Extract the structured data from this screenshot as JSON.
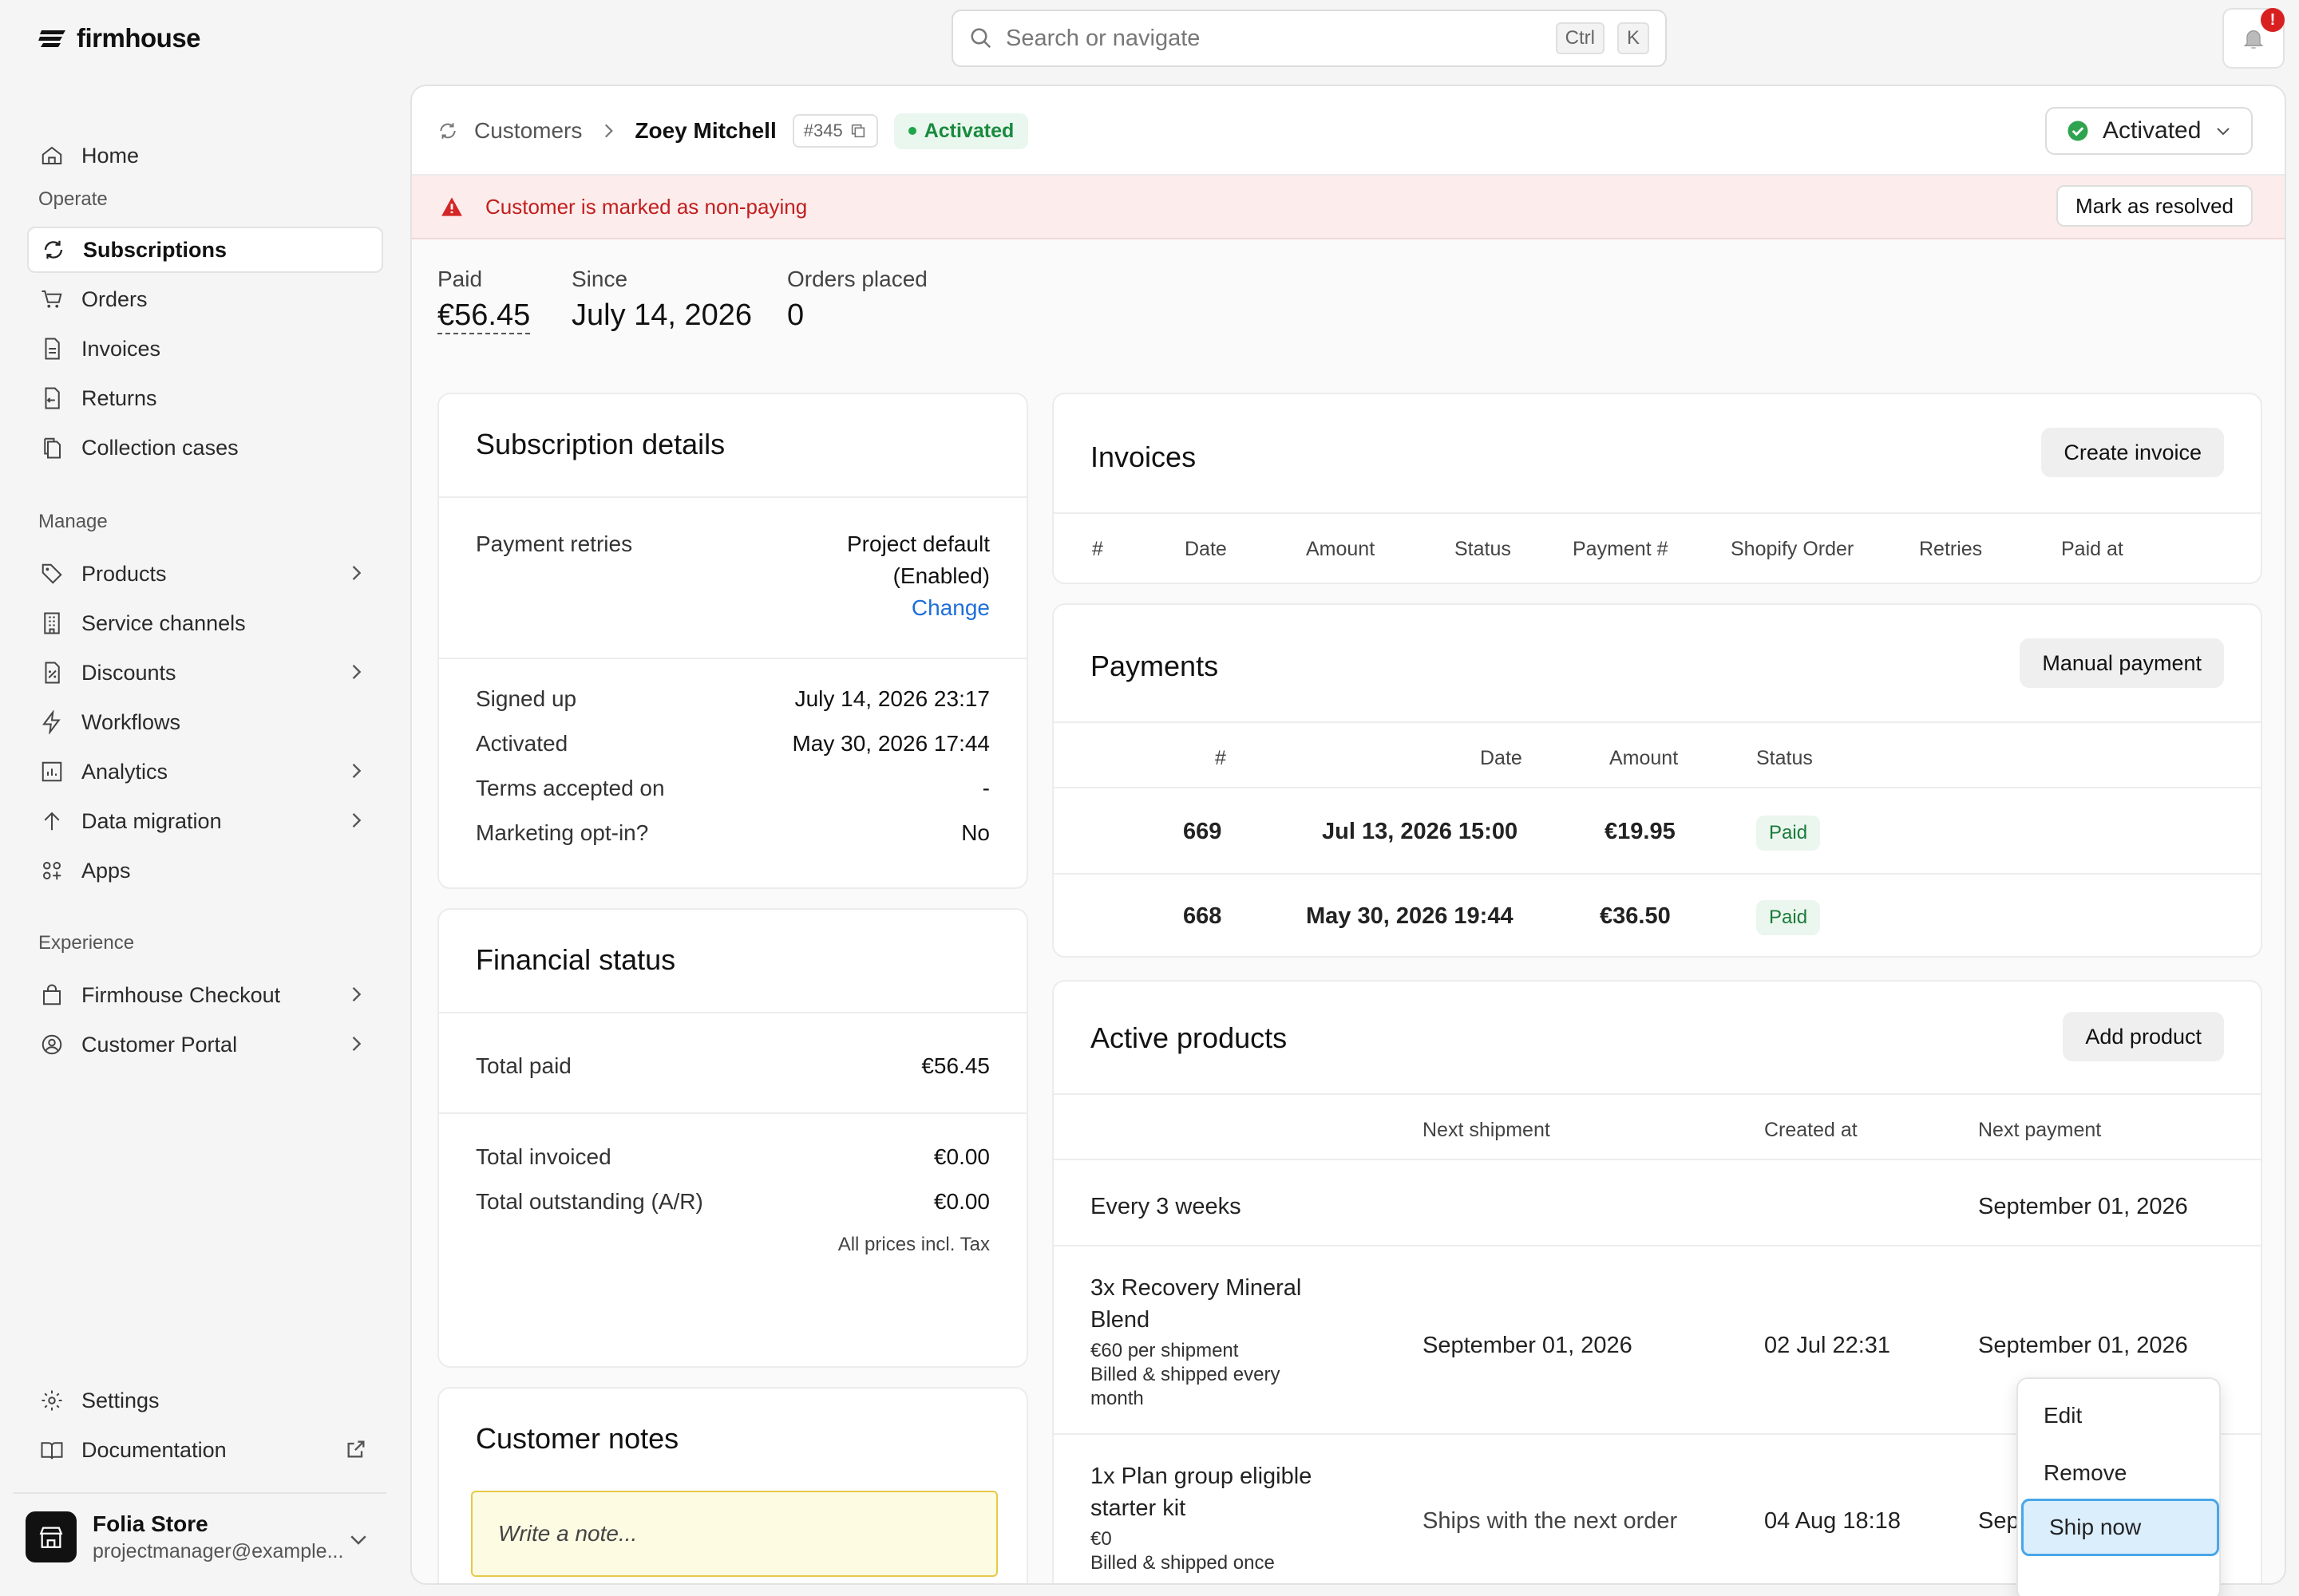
{
  "brand": {
    "name": "firmhouse"
  },
  "search": {
    "placeholder": "Search or navigate",
    "kbd1": "Ctrl",
    "kbd2": "K"
  },
  "notifications": {
    "badge": "!"
  },
  "sidebar": {
    "home": "Home",
    "sections": {
      "operate": "Operate",
      "manage": "Manage",
      "experience": "Experience"
    },
    "operate": [
      "Subscriptions",
      "Orders",
      "Invoices",
      "Returns",
      "Collection cases"
    ],
    "manage": [
      "Products",
      "Service channels",
      "Discounts",
      "Workflows",
      "Analytics",
      "Data migration",
      "Apps"
    ],
    "experience": [
      "Firmhouse Checkout",
      "Customer Portal"
    ],
    "footer": [
      "Settings",
      "Documentation"
    ],
    "store": {
      "name": "Folia Store",
      "email": "projectmanager@example..."
    }
  },
  "header": {
    "breadcrumb_root": "Customers",
    "customer_name": "Zoey Mitchell",
    "customer_id": "#345",
    "status_pill": "Activated",
    "status_select": "Activated"
  },
  "alert": {
    "message": "Customer is marked as non-paying",
    "action": "Mark as resolved"
  },
  "stats": [
    {
      "label": "Paid",
      "value": "€56.45"
    },
    {
      "label": "Since",
      "value": "July 14, 2026"
    },
    {
      "label": "Orders placed",
      "value": "0"
    }
  ],
  "subscription_details": {
    "title": "Subscription details",
    "payment_retries_label": "Payment retries",
    "payment_retries_value1": "Project default",
    "payment_retries_value2": "(Enabled)",
    "change_link": "Change",
    "rows": [
      {
        "label": "Signed up",
        "value": "July 14, 2026 23:17"
      },
      {
        "label": "Activated",
        "value": "May 30, 2026 17:44"
      },
      {
        "label": "Terms accepted on",
        "value": "-"
      },
      {
        "label": "Marketing opt-in?",
        "value": "No"
      }
    ]
  },
  "financial_status": {
    "title": "Financial status",
    "total_paid_label": "Total paid",
    "total_paid": "€56.45",
    "total_invoiced_label": "Total invoiced",
    "total_invoiced": "€0.00",
    "total_outstanding_label": "Total outstanding (A/R)",
    "total_outstanding": "€0.00",
    "note": "All prices incl. Tax"
  },
  "customer_notes": {
    "title": "Customer notes",
    "placeholder": "Write a note..."
  },
  "invoices": {
    "title": "Invoices",
    "create_button": "Create invoice",
    "columns": [
      "#",
      "Date",
      "Amount",
      "Status",
      "Payment #",
      "Shopify Order",
      "Retries",
      "Paid at"
    ]
  },
  "payments": {
    "title": "Payments",
    "manual_button": "Manual payment",
    "columns": [
      "#",
      "Date",
      "Amount",
      "Status"
    ],
    "rows": [
      {
        "id": "669",
        "date": "Jul 13, 2026 15:00",
        "amount": "€19.95",
        "status": "Paid"
      },
      {
        "id": "668",
        "date": "May 30, 2026 19:44",
        "amount": "€36.50",
        "status": "Paid"
      }
    ]
  },
  "active_products": {
    "title": "Active products",
    "add_button": "Add product",
    "columns": [
      "Next shipment",
      "Created at",
      "Next payment"
    ],
    "group": {
      "label": "Every 3 weeks",
      "next_payment": "September 01, 2026"
    },
    "products": [
      {
        "name1": "3x Recovery Mineral",
        "name2": "Blend",
        "price": "€60 per shipment",
        "freq1": "Billed & shipped every",
        "freq2": "month",
        "next_shipment": "September 01, 2026",
        "created": "02 Jul 22:31",
        "next_payment": "September 01, 2026"
      },
      {
        "name1": "1x Plan group eligible",
        "name2": "starter kit",
        "price": "€0",
        "freq1": "Billed & shipped once",
        "next_shipment": "Ships with the next order",
        "created": "04 Aug 18:18",
        "next_payment": "Sep"
      }
    ]
  },
  "row_menu": {
    "items": [
      "Edit",
      "Remove",
      "Ship now"
    ]
  }
}
